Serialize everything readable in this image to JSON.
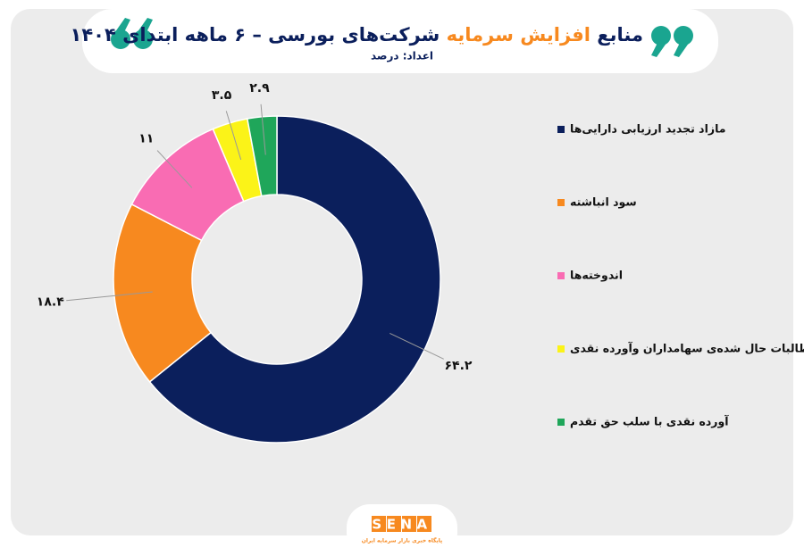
{
  "chart_data": {
    "type": "donut",
    "title": [
      "منابع",
      "افزایش سرمایه",
      "شرکت‌های بورسی – ۶ ماهه ابتدای ۱۴۰۴"
    ],
    "subtitle": "اعداد: درصد",
    "categories": [
      "مازاد تجدید ارزیابی دارایی‌ها",
      "سود انباشته",
      "اندوخته‌ها",
      "مطالبات حال شده‌ی سهامداران وآورده نقدی",
      "آورده نقدی با سلب حق تقدم"
    ],
    "values": [
      64.2,
      18.4,
      11,
      3.5,
      2.9
    ],
    "value_labels": [
      "۶۴.۲",
      "۱۸.۴",
      "۱۱",
      "۳.۵",
      "۲.۹"
    ],
    "colors": [
      "#0b1f5c",
      "#f7891f",
      "#f96cb3",
      "#fbf318",
      "#1fa65a"
    ],
    "title_colors": [
      "#0b1f5c",
      "#f7891f",
      "#0b1f5c"
    ],
    "logo": "SENA",
    "tagline": "پایگاه خبری بازار سرمایه ایران"
  }
}
